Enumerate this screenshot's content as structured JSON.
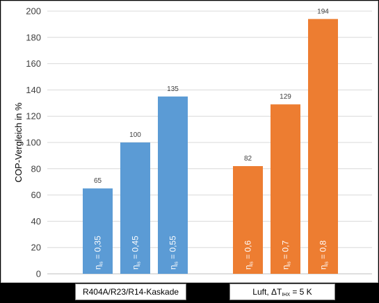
{
  "chart_data": {
    "type": "bar",
    "ylabel": "COP-Vergleich in %",
    "ylim": [
      0,
      200
    ],
    "ytick_step": 20,
    "grid": true,
    "groups": [
      {
        "label": "R404A/R23/R14-Kaskade",
        "color": "#5b9bd5",
        "bars": [
          {
            "value": 65,
            "inner_label": "η",
            "inner_sub": "is",
            "inner_value": " = 0,35"
          },
          {
            "value": 100,
            "inner_label": "η",
            "inner_sub": "is",
            "inner_value": " = 0,45"
          },
          {
            "value": 135,
            "inner_label": "η",
            "inner_sub": "is",
            "inner_value": " = 0,55"
          }
        ]
      },
      {
        "label_prefix": "Luft, ΔT",
        "label_sub": "IHX",
        "label_suffix": " = 5 K",
        "color": "#ed7d31",
        "bars": [
          {
            "value": 82,
            "inner_label": "η",
            "inner_sub": "is",
            "inner_value": " = 0,6"
          },
          {
            "value": 129,
            "inner_label": "η",
            "inner_sub": "is",
            "inner_value": " = 0,7"
          },
          {
            "value": 194,
            "inner_label": "η",
            "inner_sub": "is",
            "inner_value": " = 0,8"
          }
        ]
      }
    ]
  }
}
